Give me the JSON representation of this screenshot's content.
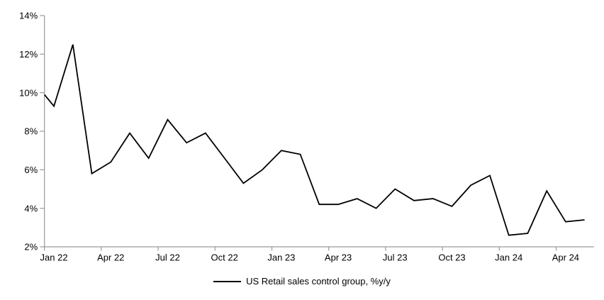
{
  "chart_data": {
    "type": "line",
    "title": "",
    "categories": [
      "Jan 22",
      "Feb 22",
      "Mar 22",
      "Apr 22",
      "May 22",
      "Jun 22",
      "Jul 22",
      "Aug 22",
      "Sep 22",
      "Oct 22",
      "Nov 22",
      "Dec 22",
      "Jan 23",
      "Feb 23",
      "Mar 23",
      "Apr 23",
      "May 23",
      "Jun 23",
      "Jul 23",
      "Aug 23",
      "Sep 23",
      "Oct 23",
      "Nov 23",
      "Dec 23",
      "Jan 24",
      "Feb 24",
      "Mar 24",
      "Apr 24",
      "May 24"
    ],
    "series": [
      {
        "name": "US Retail sales control group, %y/y",
        "color": "#000000",
        "values": [
          9.3,
          12.5,
          5.8,
          6.4,
          7.9,
          6.6,
          8.6,
          7.4,
          7.9,
          6.6,
          5.3,
          6.0,
          7.0,
          6.8,
          4.2,
          4.2,
          4.5,
          4.0,
          5.0,
          4.4,
          4.5,
          4.1,
          5.2,
          5.7,
          2.6,
          2.7,
          4.9,
          3.3,
          3.4
        ],
        "edge_start_value": 9.9
      }
    ],
    "xlabel": "",
    "ylabel": "",
    "ylim": [
      2,
      14
    ],
    "y_ticks": [
      2,
      4,
      6,
      8,
      10,
      12,
      14
    ],
    "y_tick_labels": [
      "2%",
      "4%",
      "6%",
      "8%",
      "10%",
      "12%",
      "14%"
    ],
    "x_tick_labels": [
      "Jan 22",
      "Apr 22",
      "Jul 22",
      "Oct 22",
      "Jan 23",
      "Apr 23",
      "Jul 23",
      "Oct 23",
      "Jan 24",
      "Apr 24"
    ],
    "x_label_interval_months": 3,
    "grid": false,
    "legend_position": "bottom",
    "axis_color": "#999999",
    "text_color": "#000000"
  }
}
